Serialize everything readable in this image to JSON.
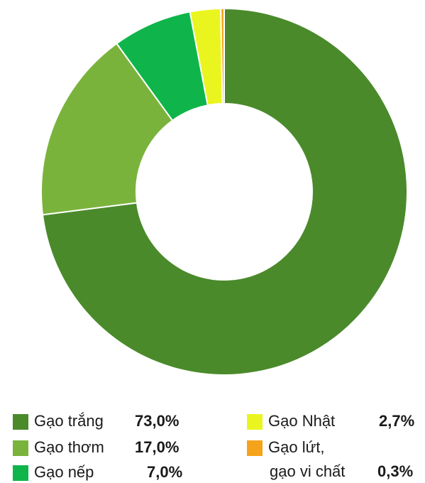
{
  "chart_data": {
    "type": "pie",
    "donut": true,
    "categories": [
      "Gạo trắng",
      "Gạo thơm",
      "Gạo nếp",
      "Gạo Nhật",
      "Gạo lứt, gạo vi chất"
    ],
    "values": [
      73.0,
      17.0,
      7.0,
      2.7,
      0.3
    ],
    "value_labels": [
      "73,0%",
      "17,0%",
      "7,0%",
      "2,7%",
      "0,3%"
    ],
    "colors": [
      "#4a8a2a",
      "#7ab33b",
      "#0fb54a",
      "#eaf51f",
      "#f5a31a"
    ],
    "legend_position": "bottom"
  },
  "legend": [
    {
      "label": "Gạo trắng",
      "value": "73,0%"
    },
    {
      "label": "Gạo thơm",
      "value": "17,0%"
    },
    {
      "label": "Gạo nếp",
      "value": "7,0%"
    },
    {
      "label": "Gạo Nhật",
      "value": "2,7%"
    },
    {
      "label": "Gạo lứt,",
      "label2": "gạo vi chất",
      "value": "0,3%"
    }
  ]
}
